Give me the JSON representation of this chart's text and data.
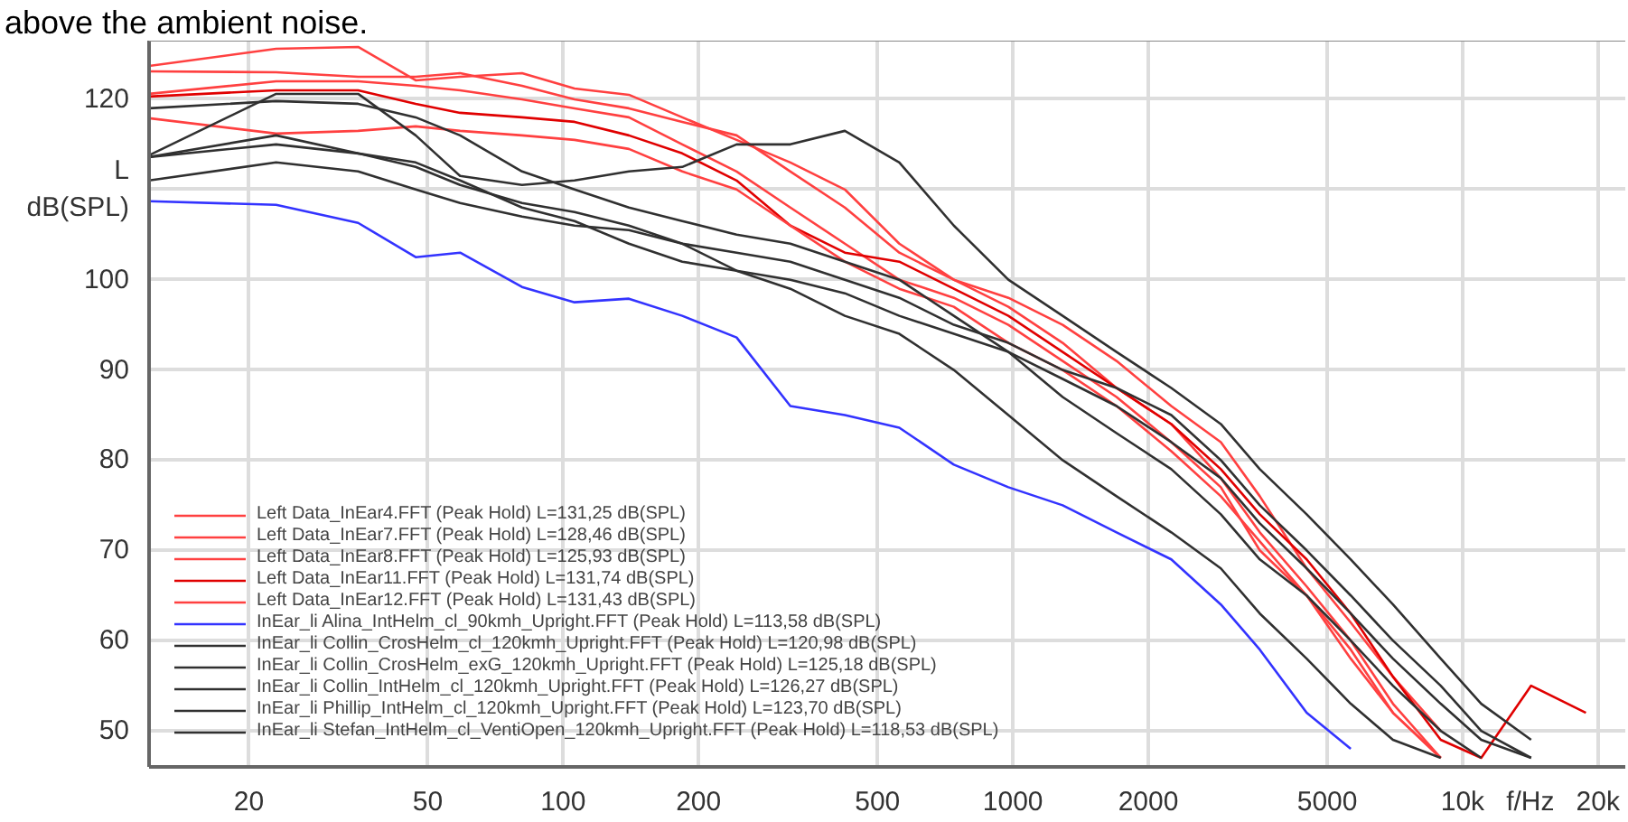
{
  "chart_data": {
    "type": "line",
    "xlabel": "f/Hz",
    "ylabel": "L\ndB(SPL)",
    "annotations": [
      "above the ambient noise."
    ],
    "log": "x",
    "grid": true,
    "legend": "bottom left",
    "line_style": "solid",
    "marker": "none",
    "xlim": [
      12,
      23000
    ],
    "ylim": [
      46,
      126.5
    ],
    "xticks": [
      20,
      50,
      100,
      200,
      500,
      1000,
      2000,
      5000,
      {
        "value": 10000,
        "label": "10k"
      },
      {
        "value": 20000,
        "label": "20k"
      }
    ],
    "yticks": [
      50,
      60,
      70,
      80,
      90,
      100,
      {
        "value": 110,
        "label": null
      },
      120
    ],
    "x": [
      12,
      23,
      35,
      47,
      59,
      81,
      106,
      140,
      184,
      243,
      320,
      423,
      559,
      739,
      977,
      1290,
      1700,
      2250,
      2900,
      3540,
      4500,
      5640,
      7000,
      8940,
      11000,
      14200,
      18800
    ],
    "series": [
      {
        "name": "Left Data_InEar4.FFT (Peak Hold) L=131,25 dB(SPL)",
        "color": "#ff4040",
        "values": [
          123.7,
          125.6,
          125.8,
          122.1,
          122.5,
          122.9,
          121.2,
          120.5,
          118,
          115.5,
          113,
          110,
          104,
          100,
          98,
          95,
          91,
          86,
          82,
          76,
          68,
          62,
          56,
          50,
          null,
          null,
          null
        ]
      },
      {
        "name": "Left Data_InEar7.FFT (Peak Hold) L=128,46 dB(SPL)",
        "color": "#ff4040",
        "values": [
          123.1,
          123,
          122.5,
          122.5,
          122.9,
          121.5,
          120,
          119,
          117.5,
          116,
          112,
          108,
          103,
          100,
          97,
          93,
          88,
          84,
          78,
          72,
          66,
          60,
          53,
          47,
          null,
          null,
          null
        ]
      },
      {
        "name": "Left Data_InEar8.FFT (Peak Hold) L=125,93 dB(SPL)",
        "color": "#ff4040",
        "values": [
          120.6,
          122,
          122,
          121.5,
          121,
          120,
          119,
          118,
          115,
          112,
          108,
          104,
          100,
          98,
          95,
          91,
          87,
          82,
          77,
          70,
          65,
          58,
          52,
          47,
          null,
          null,
          null
        ]
      },
      {
        "name": "Left Data_InEar11.FFT (Peak Hold) L=131,74 dB(SPL)",
        "color": "#e00000",
        "values": [
          120.3,
          121,
          121,
          119.5,
          118.5,
          118,
          117.5,
          116,
          114,
          111,
          106,
          103,
          102,
          99,
          96,
          92,
          88,
          84,
          79,
          74,
          69,
          63,
          56,
          49,
          47,
          55,
          52
        ]
      },
      {
        "name": "Left Data_InEar12.FFT (Peak Hold) L=131,43 dB(SPL)",
        "color": "#ff4040",
        "values": [
          117.9,
          116.2,
          116.5,
          117,
          116.5,
          116,
          115.5,
          114.5,
          112,
          110,
          106,
          102,
          99,
          97,
          93,
          90,
          86,
          81,
          76,
          71,
          65,
          59,
          52,
          47,
          null,
          null,
          null
        ]
      },
      {
        "name": "InEar_li Alina_IntHelm_cl_90kmh_Upright.FFT (Peak Hold) L=113,58 dB(SPL)",
        "color": "#3333ff",
        "values": [
          108.7,
          108.3,
          106.3,
          102.5,
          103,
          99.2,
          97.5,
          97.9,
          96,
          93.6,
          86,
          85,
          83.6,
          79.5,
          77,
          75,
          72,
          69,
          64,
          59,
          52,
          48,
          null,
          null,
          null,
          null,
          null
        ]
      },
      {
        "name": "InEar_li Collin_CrosHelm_cl_120kmh_Upright.FFT (Peak Hold) L=120,98 dB(SPL)",
        "color": "#303030",
        "values": [
          119,
          119.8,
          119.5,
          118,
          116,
          112,
          110,
          108,
          106.5,
          105,
          104,
          102,
          100,
          96,
          92,
          89,
          86,
          82,
          78,
          73,
          68,
          63,
          58,
          53,
          49,
          47,
          null
        ]
      },
      {
        "name": "InEar_li Collin_CrosHelm_exG_120kmh_Upright.FFT (Peak Hold) L=125,18 dB(SPL)",
        "color": "#303030",
        "values": [
          113.8,
          120.6,
          120.6,
          116,
          111.5,
          110.5,
          111,
          112,
          112.5,
          115,
          115,
          116.5,
          113,
          106,
          100,
          96,
          92,
          88,
          84,
          79,
          74,
          69,
          64,
          58,
          53,
          49,
          null
        ]
      },
      {
        "name": "InEar_li Collin_IntHelm_cl_120kmh_Upright.FFT (Peak Hold) L=126,27 dB(SPL)",
        "color": "#303030",
        "values": [
          113.6,
          115,
          114,
          112.5,
          110.5,
          108.5,
          107.5,
          106,
          104,
          103,
          102,
          100,
          98,
          95,
          93,
          90,
          88,
          85,
          80,
          75,
          70,
          65,
          60,
          55,
          50,
          47,
          null
        ]
      },
      {
        "name": "InEar_li Phillip_IntHelm_cl_120kmh_Upright.FFT (Peak Hold) L=123,70 dB(SPL)",
        "color": "#303030",
        "values": [
          111,
          113,
          112,
          110,
          108.5,
          107,
          106,
          105.5,
          104,
          101,
          100,
          98.5,
          96,
          94,
          92,
          87,
          83,
          79,
          74,
          69,
          65,
          60,
          55,
          50,
          47,
          null,
          null
        ]
      },
      {
        "name": "InEar_li Stefan_IntHelm_cl_VentiOpen_120kmh_Upright.FFT (Peak Hold) L=118,53 dB(SPL)",
        "color": "#303030",
        "values": [
          113.6,
          116,
          114,
          113,
          111,
          108,
          106.5,
          104,
          102,
          101,
          99,
          96,
          94,
          90,
          85,
          80,
          76,
          72,
          68,
          63,
          58,
          53,
          49,
          47,
          null,
          null,
          null
        ]
      }
    ]
  }
}
